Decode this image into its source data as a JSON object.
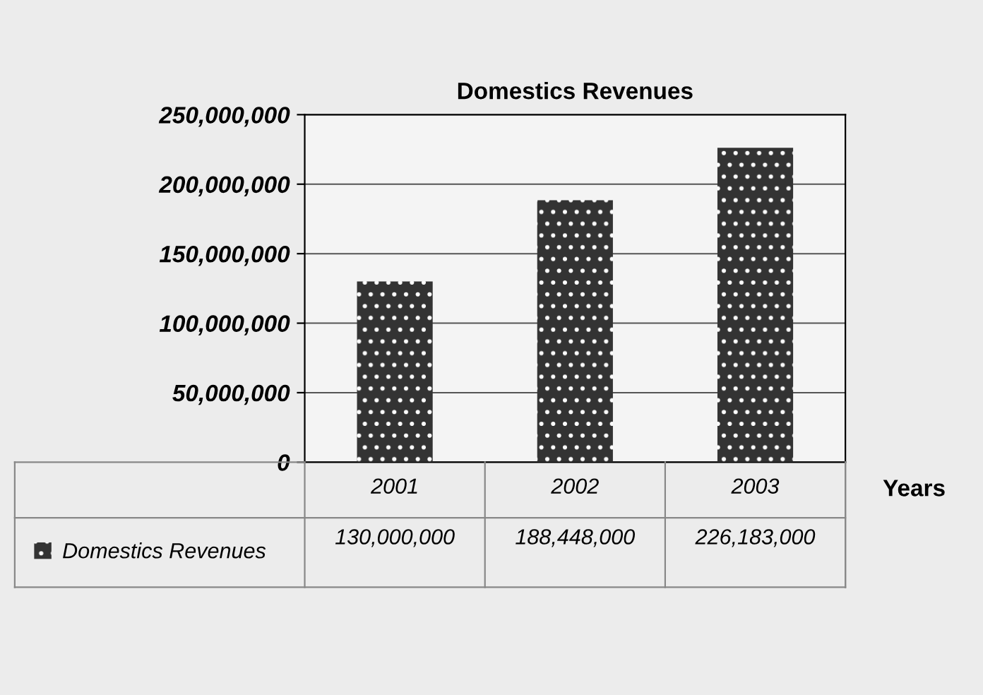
{
  "chart_data": {
    "type": "bar",
    "title": "Domestics Revenues",
    "xlabel": "Years",
    "categories": [
      "2001",
      "2002",
      "2003"
    ],
    "series": [
      {
        "name": "Domestics Revenues",
        "color": "#333333",
        "values": [
          130000000,
          188448000,
          226183000
        ],
        "value_labels": [
          "130,000,000",
          "188,448,000",
          "226,183,000"
        ]
      }
    ],
    "ylim": [
      0,
      250000000
    ],
    "yticks": [
      {
        "value": 0,
        "label": "0"
      },
      {
        "value": 50000000,
        "label": "50,000,000"
      },
      {
        "value": 100000000,
        "label": "100,000,000"
      },
      {
        "value": 150000000,
        "label": "150,000,000"
      },
      {
        "value": 200000000,
        "label": "200,000,000"
      },
      {
        "value": 250000000,
        "label": "250,000,000"
      }
    ],
    "grid": "y",
    "legend": "bottom"
  }
}
